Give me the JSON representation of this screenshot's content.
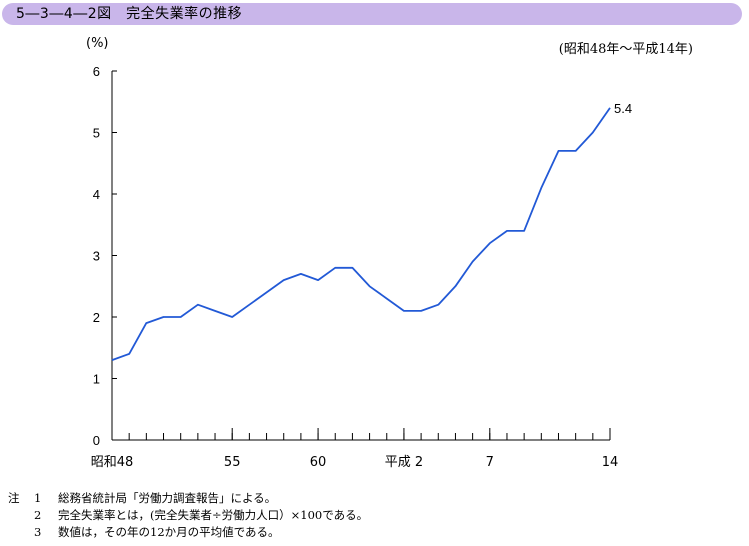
{
  "title": "5―3―4―2図　完全失業率の推移",
  "unit_label": "(%)",
  "period_label": "(昭和48年〜平成14年)",
  "chart_data": {
    "type": "line",
    "title": "完全失業率の推移",
    "xlabel": "",
    "ylabel": "(%)",
    "ylim": [
      0,
      6
    ],
    "yticks": [
      0,
      1,
      2,
      3,
      4,
      5,
      6
    ],
    "grid": false,
    "x_tick_labels": [
      {
        "year": 1973,
        "label": "昭和48"
      },
      {
        "year": 1980,
        "label": "55"
      },
      {
        "year": 1985,
        "label": "60"
      },
      {
        "year": 1990,
        "label": "平成 2"
      },
      {
        "year": 1995,
        "label": "7"
      },
      {
        "year": 2002,
        "label": "14"
      }
    ],
    "x_minor_tick_years": [
      1973,
      1974,
      1975,
      1976,
      1977,
      1978,
      1979,
      1980,
      1981,
      1982,
      1983,
      1984,
      1985,
      1986,
      1987,
      1988,
      1989,
      1990,
      1991,
      1992,
      1993,
      1994,
      1995,
      1996,
      1997,
      1998,
      1999,
      2000,
      2001,
      2002
    ],
    "series": [
      {
        "name": "",
        "color": "#2259d6",
        "x": [
          1973,
          1974,
          1975,
          1976,
          1977,
          1978,
          1979,
          1980,
          1981,
          1982,
          1983,
          1984,
          1985,
          1986,
          1987,
          1988,
          1989,
          1990,
          1991,
          1992,
          1993,
          1994,
          1995,
          1996,
          1997,
          1998,
          1999,
          2000,
          2001,
          2002
        ],
        "values": [
          1.3,
          1.4,
          1.9,
          2.0,
          2.0,
          2.2,
          2.1,
          2.0,
          2.2,
          2.4,
          2.6,
          2.7,
          2.6,
          2.8,
          2.8,
          2.5,
          2.3,
          2.1,
          2.1,
          2.2,
          2.5,
          2.9,
          3.2,
          3.4,
          3.4,
          4.1,
          4.7,
          4.7,
          5.0,
          5.4
        ]
      }
    ],
    "annotations": [
      {
        "year": 2002,
        "value": 5.4,
        "text": "5.4"
      }
    ]
  },
  "notes": [
    {
      "head": "注",
      "num": "1",
      "text": "総務省統計局「労働力調査報告」による。"
    },
    {
      "head": "",
      "num": "2",
      "text": "完全失業率とは，(完全失業者÷労働力人口）×100である。"
    },
    {
      "head": "",
      "num": "3",
      "text": "数値は，その年の12か月の平均値である。"
    }
  ]
}
